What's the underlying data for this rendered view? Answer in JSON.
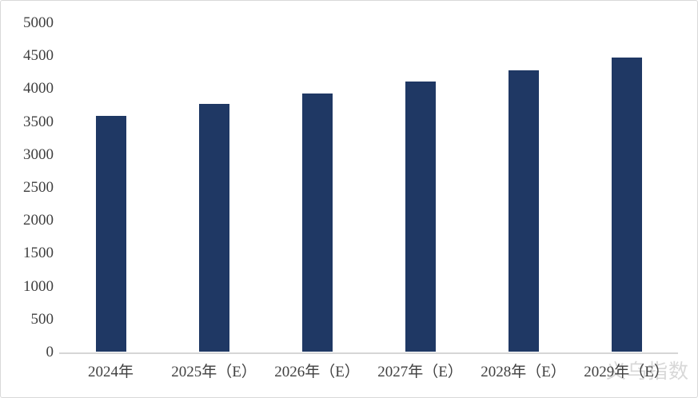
{
  "chart_data": {
    "type": "bar",
    "categories": [
      "2024年",
      "2025年（E）",
      "2026年（E）",
      "2027年（E）",
      "2028年（E）",
      "2029年（E）"
    ],
    "values": [
      3580,
      3760,
      3920,
      4100,
      4270,
      4470
    ],
    "title": "",
    "xlabel": "",
    "ylabel": "",
    "ylim": [
      0,
      5000
    ],
    "yticks": [
      0,
      500,
      1000,
      1500,
      2000,
      2500,
      3000,
      3500,
      4000,
      4500,
      5000
    ],
    "grid": false,
    "legend_position": "none",
    "bar_color": "#1F3864",
    "axis_line_color": "#D6D6D6",
    "tick_label_color": "#3F3F3F"
  },
  "watermark": {
    "text": "义乌指数",
    "color": "#D8D8D8"
  }
}
